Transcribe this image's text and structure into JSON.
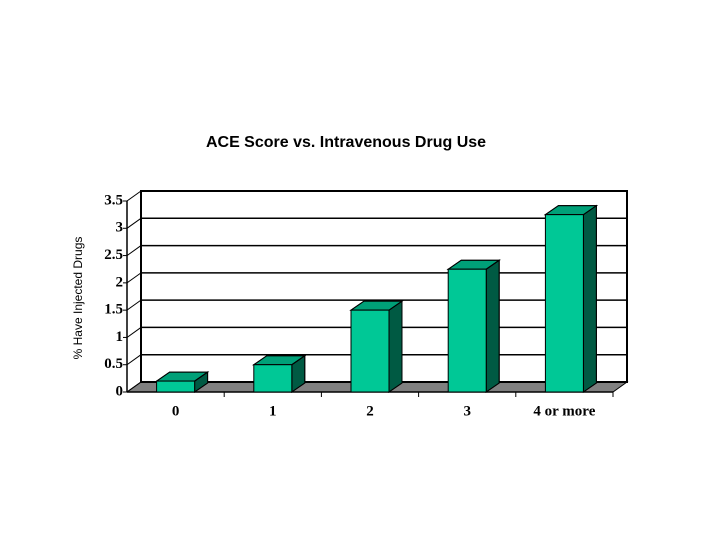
{
  "chart_data": {
    "type": "bar",
    "title": "ACE Score vs. Intravenous Drug Use",
    "y_label": "% Have Injected Drugs",
    "categories": [
      "0",
      "1",
      "2",
      "3",
      "4 or more"
    ],
    "values": [
      0.2,
      0.5,
      1.5,
      2.25,
      3.25
    ],
    "color": "#00c896",
    "ylim": [
      0,
      3.5
    ],
    "yticks": [
      0,
      0.5,
      1,
      1.5,
      2,
      2.5,
      3,
      3.5
    ],
    "grid": true
  }
}
